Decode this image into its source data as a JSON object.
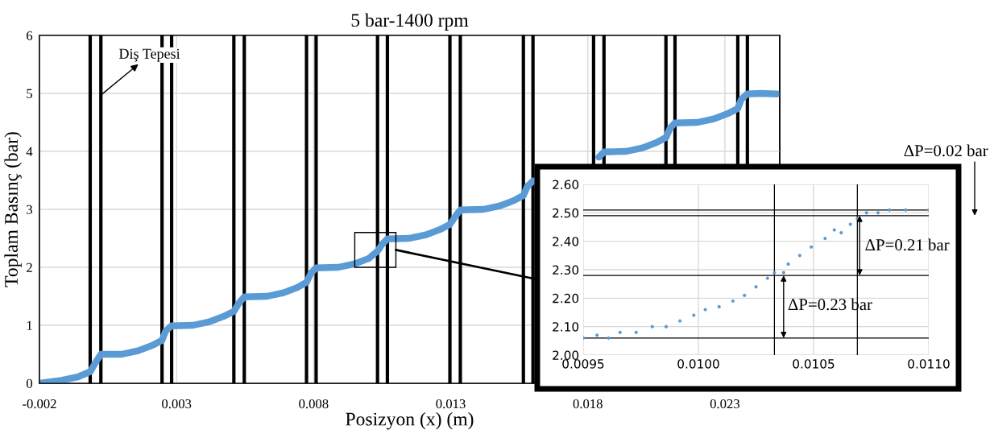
{
  "chart_data": [
    {
      "type": "line",
      "title": "5 bar-1400 rpm",
      "xlabel": "Posizyon (x) (m)",
      "ylabel": "Toplam Basınç (bar)",
      "series": [
        {
          "color": "#5b9bd5",
          "x": [
            -0.002,
            -0.0012,
            -0.0006,
            -0.00015,
            0.0001,
            0.00024,
            0.001,
            0.0016,
            0.0021,
            0.00247,
            0.0026,
            0.00282,
            0.0036,
            0.0042,
            0.0047,
            0.00509,
            0.0053,
            0.00547,
            0.0063,
            0.0069,
            0.0074,
            0.00774,
            0.0079,
            0.00809,
            0.0089,
            0.0095,
            0.01,
            0.01033,
            0.0105,
            0.01069,
            0.0115,
            0.0121,
            0.0126,
            0.01297,
            0.0132,
            0.01335,
            0.0142,
            0.0148,
            0.0153,
            0.01565,
            0.0158,
            0.016,
            0.0168,
            0.0174,
            0.0179,
            0.01821,
            0.0184,
            0.01859,
            0.0194,
            0.02,
            0.0205,
            0.02085,
            0.021,
            0.02118,
            0.022,
            0.0226,
            0.0231,
            0.02347,
            0.0236,
            0.02382,
            0.0243,
            0.0249
          ],
          "values": [
            0,
            0.05,
            0.11,
            0.2,
            0.4,
            0.5,
            0.5,
            0.56,
            0.65,
            0.74,
            0.9,
            0.99,
            1.0,
            1.06,
            1.15,
            1.24,
            1.4,
            1.49,
            1.5,
            1.56,
            1.65,
            1.74,
            1.9,
            1.99,
            2.0,
            2.06,
            2.15,
            2.28,
            2.4,
            2.49,
            2.5,
            2.56,
            2.65,
            2.74,
            2.9,
            2.99,
            3.0,
            3.06,
            3.15,
            3.24,
            3.4,
            3.49,
            null,
            null,
            null,
            null,
            3.9,
            3.99,
            4.0,
            4.06,
            4.15,
            4.24,
            4.4,
            4.49,
            4.5,
            4.56,
            4.65,
            4.74,
            4.9,
            4.99,
            5.0,
            4.99
          ]
        }
      ],
      "xlim": [
        -0.002,
        0.025
      ],
      "xticks": [
        -0.002,
        0.003,
        0.008,
        0.013,
        0.018,
        0.023
      ],
      "ylim": [
        0,
        6
      ],
      "yticks": [
        0,
        1,
        2,
        3,
        4,
        5,
        6
      ],
      "grid": true,
      "marker": "none",
      "line_style": "solid",
      "ref_lines": [
        {
          "axis": "x",
          "value": -0.00015,
          "color": "#000000"
        },
        {
          "axis": "x",
          "value": 0.00024,
          "color": "#000000"
        },
        {
          "axis": "x",
          "value": 0.00247,
          "color": "#000000"
        },
        {
          "axis": "x",
          "value": 0.00282,
          "color": "#000000"
        },
        {
          "axis": "x",
          "value": 0.00509,
          "color": "#000000"
        },
        {
          "axis": "x",
          "value": 0.00547,
          "color": "#000000"
        },
        {
          "axis": "x",
          "value": 0.00774,
          "color": "#000000"
        },
        {
          "axis": "x",
          "value": 0.00809,
          "color": "#000000"
        },
        {
          "axis": "x",
          "value": 0.01033,
          "color": "#000000"
        },
        {
          "axis": "x",
          "value": 0.01069,
          "color": "#000000"
        },
        {
          "axis": "x",
          "value": 0.01297,
          "color": "#000000"
        },
        {
          "axis": "x",
          "value": 0.01335,
          "color": "#000000"
        },
        {
          "axis": "x",
          "value": 0.01565,
          "color": "#000000"
        },
        {
          "axis": "x",
          "value": 0.016,
          "color": "#000000"
        },
        {
          "axis": "x",
          "value": 0.01821,
          "color": "#000000"
        },
        {
          "axis": "x",
          "value": 0.01859,
          "color": "#000000"
        },
        {
          "axis": "x",
          "value": 0.02085,
          "color": "#000000"
        },
        {
          "axis": "x",
          "value": 0.02118,
          "color": "#000000"
        },
        {
          "axis": "x",
          "value": 0.02347,
          "color": "#000000"
        },
        {
          "axis": "x",
          "value": 0.02382,
          "color": "#000000"
        }
      ],
      "annotations": [
        {
          "text": "Diş Tepesi",
          "x": 0.00024,
          "y": 4.97
        }
      ]
    },
    {
      "type": "scatter",
      "marker": "circle",
      "grid": true,
      "series": [
        {
          "color": "#5b9bd5",
          "x": [
            0.0095,
            0.00956,
            0.00961,
            0.00966,
            0.00973,
            0.0098,
            0.00986,
            0.00992,
            0.00998,
            0.01003,
            0.01009,
            0.01015,
            0.0102,
            0.01025,
            0.0103,
            0.01033,
            0.01037,
            0.01039,
            0.01044,
            0.01049,
            0.01055,
            0.01059,
            0.01062,
            0.01066,
            0.01069,
            0.01073,
            0.01078,
            0.01083,
            0.0109,
            0.011
          ],
          "values": [
            2.06,
            2.07,
            2.06,
            2.08,
            2.08,
            2.1,
            2.1,
            2.12,
            2.14,
            2.16,
            2.17,
            2.19,
            2.21,
            2.24,
            2.27,
            2.29,
            2.29,
            2.32,
            2.35,
            2.38,
            2.41,
            2.44,
            2.43,
            2.46,
            2.48,
            2.5,
            2.5,
            2.51,
            2.51,
            2.51
          ]
        }
      ],
      "xlim": [
        0.0095,
        0.011
      ],
      "xticks": [
        {
          "value": 0.0095,
          "label": "0.0095"
        },
        {
          "value": 0.01,
          "label": "0.0100"
        },
        {
          "value": 0.0105,
          "label": "0.0105"
        },
        {
          "value": 0.011,
          "label": "0.0110"
        }
      ],
      "ylim": [
        2.0,
        2.6
      ],
      "yticks": [
        {
          "value": 2.0,
          "label": "2.00"
        },
        {
          "value": 2.1,
          "label": "2.10"
        },
        {
          "value": 2.2,
          "label": "2.20"
        },
        {
          "value": 2.3,
          "label": "2.30"
        },
        {
          "value": 2.4,
          "label": "2.40"
        },
        {
          "value": 2.5,
          "label": "2.50"
        },
        {
          "value": 2.6,
          "label": "2.60"
        }
      ],
      "ref_lines": [
        {
          "axis": "y",
          "value": 2.06,
          "color": "#000000"
        },
        {
          "axis": "y",
          "value": 2.28,
          "color": "#000000"
        },
        {
          "axis": "y",
          "value": 2.49,
          "color": "#000000"
        },
        {
          "axis": "y",
          "value": 2.51,
          "color": "#000000"
        },
        {
          "axis": "x",
          "value": 0.01033,
          "color": "#000000"
        },
        {
          "axis": "x",
          "value": 0.01069,
          "color": "#000000"
        }
      ],
      "annotations": [
        "ΔP=0.23 bar",
        "ΔP=0.21 bar",
        "ΔP=0.02 bar"
      ]
    }
  ]
}
